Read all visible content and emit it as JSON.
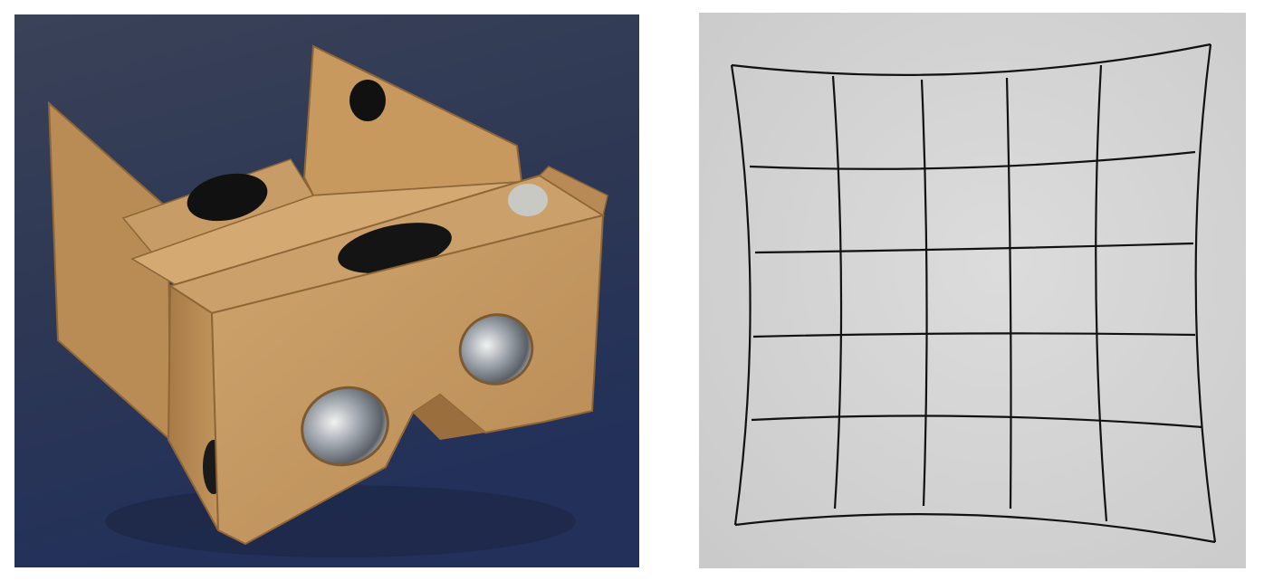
{
  "figure": {
    "left_photo": {
      "subject": "cardboard-vr-viewer",
      "background_color": "#2b3550",
      "cardboard_color": "#c69a63"
    },
    "right_photo": {
      "subject": "pincushion-distorted-grid",
      "paper_color": "#d6d6d6",
      "line_color": "#111111",
      "grid_columns": 5,
      "grid_rows": 5
    }
  }
}
